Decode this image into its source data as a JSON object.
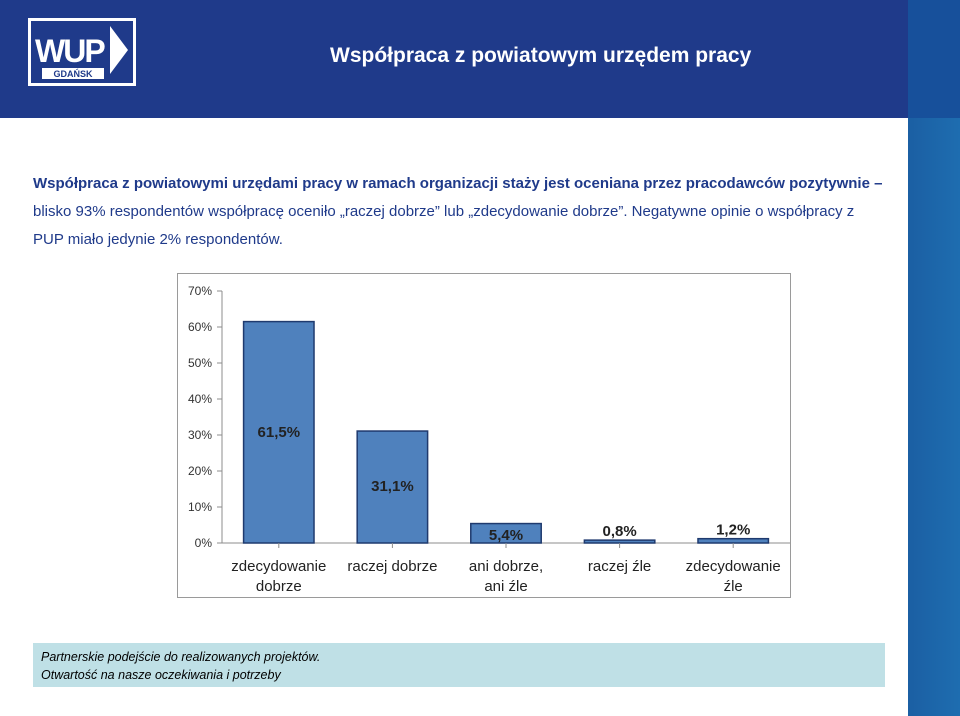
{
  "header": {
    "title": "Współpraca z powiatowym urzędem pracy",
    "logo_text": "WUP",
    "logo_subtext": "GDAŃSK",
    "colors": {
      "header_bg": "#1f3a8a",
      "side_stripe": "#1e6db0"
    }
  },
  "intro": {
    "bold_part": "Współpraca z powiatowymi urzędami pracy w ramach organizacji staży jest oceniana przez pracodawców pozytywnie –",
    "regular_part": " blisko 93% respondentów współpracę oceniło „raczej dobrze” lub „zdecydowanie dobrze”. Negatywne opinie o współpracy z PUP miało jedynie 2% respondentów."
  },
  "chart_data": {
    "type": "bar",
    "categories": [
      "zdecydowanie dobrze",
      "raczej dobrze",
      "ani dobrze, ani źle",
      "raczej źle",
      "zdecydowanie źle"
    ],
    "values": [
      61.5,
      31.1,
      5.4,
      0.8,
      1.2
    ],
    "data_labels": [
      "61,5%",
      "31,1%",
      "5,4%",
      "0,8%",
      "1,2%"
    ],
    "ylim": [
      0,
      70
    ],
    "yticks": [
      "0%",
      "10%",
      "20%",
      "30%",
      "40%",
      "50%",
      "60%",
      "70%"
    ],
    "grid": false,
    "bar_color": "#4f81bd",
    "bar_border": "#1f3a6e"
  },
  "footer": {
    "line1": "Partnerskie podejście do realizowanych projektów.",
    "line2": "Otwartość na nasze oczekiwania i potrzeby"
  }
}
